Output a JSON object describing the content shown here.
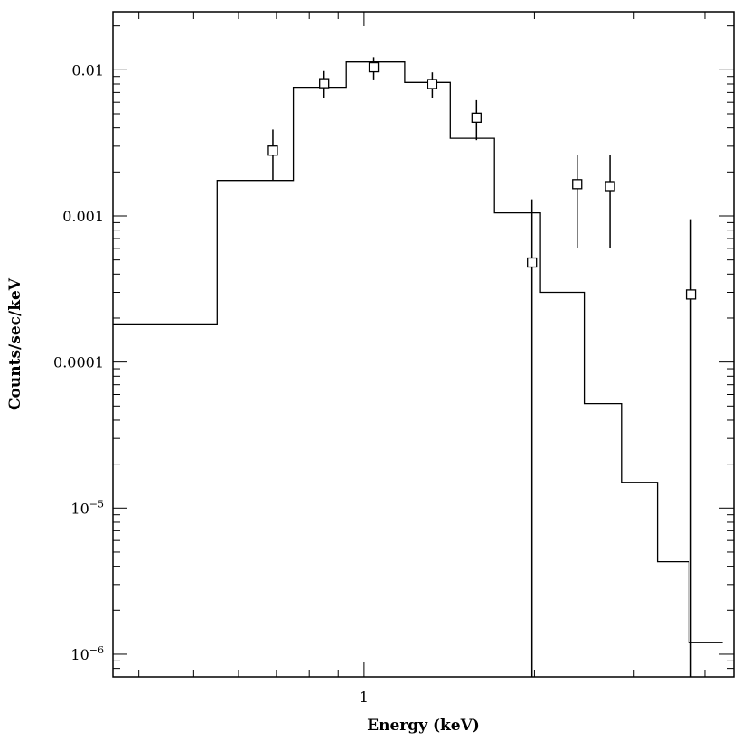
{
  "chart_data": {
    "type": "step-line-with-errorbars",
    "xlabel": "Energy (keV)",
    "ylabel": "Counts/sec/keV",
    "x_scale": "log",
    "y_scale": "log",
    "xlim": [
      0.36,
      4.5
    ],
    "ylim": [
      7e-07,
      0.025
    ],
    "x_tick_labels": [
      {
        "value": 1,
        "label": "1"
      }
    ],
    "y_tick_labels": [
      {
        "value": 0.01,
        "label": "0.01",
        "sup": ""
      },
      {
        "value": 0.001,
        "label": "0.001",
        "sup": ""
      },
      {
        "value": 0.0001,
        "label": "0.0001",
        "sup": ""
      },
      {
        "value": 1e-05,
        "label": "10",
        "sup": "−5"
      },
      {
        "value": 1e-06,
        "label": "10",
        "sup": "−6"
      }
    ],
    "model_steps": [
      {
        "x0": 0.36,
        "x1": 0.55,
        "y": 0.00018
      },
      {
        "x0": 0.55,
        "x1": 0.75,
        "y": 0.00175
      },
      {
        "x0": 0.75,
        "x1": 0.93,
        "y": 0.0076
      },
      {
        "x0": 0.93,
        "x1": 1.18,
        "y": 0.0113
      },
      {
        "x0": 1.18,
        "x1": 1.42,
        "y": 0.0082
      },
      {
        "x0": 1.42,
        "x1": 1.7,
        "y": 0.0034
      },
      {
        "x0": 1.7,
        "x1": 2.05,
        "y": 0.00105
      },
      {
        "x0": 2.05,
        "x1": 2.45,
        "y": 0.0003
      },
      {
        "x0": 2.45,
        "x1": 2.85,
        "y": 5.2e-05
      },
      {
        "x0": 2.85,
        "x1": 3.3,
        "y": 1.5e-05
      },
      {
        "x0": 3.3,
        "x1": 3.75,
        "y": 4.3e-06
      },
      {
        "x0": 3.75,
        "x1": 4.3,
        "y": 1.2e-06
      }
    ],
    "data_points": [
      {
        "x": 0.69,
        "y": 0.0028,
        "ylo": 0.00175,
        "yhi": 0.0039
      },
      {
        "x": 0.85,
        "y": 0.0081,
        "ylo": 0.0064,
        "yhi": 0.0098
      },
      {
        "x": 1.04,
        "y": 0.0104,
        "ylo": 0.0086,
        "yhi": 0.0122
      },
      {
        "x": 1.32,
        "y": 0.008,
        "ylo": 0.0064,
        "yhi": 0.0096
      },
      {
        "x": 1.58,
        "y": 0.0047,
        "ylo": 0.0033,
        "yhi": 0.0062
      },
      {
        "x": 1.98,
        "y": 0.00048,
        "ylo": 7e-07,
        "yhi": 0.0013
      },
      {
        "x": 2.38,
        "y": 0.00165,
        "ylo": 0.0006,
        "yhi": 0.0026
      },
      {
        "x": 2.72,
        "y": 0.0016,
        "ylo": 0.0006,
        "yhi": 0.0026
      },
      {
        "x": 3.78,
        "y": 0.00029,
        "ylo": 7e-07,
        "yhi": 0.00095
      }
    ]
  }
}
